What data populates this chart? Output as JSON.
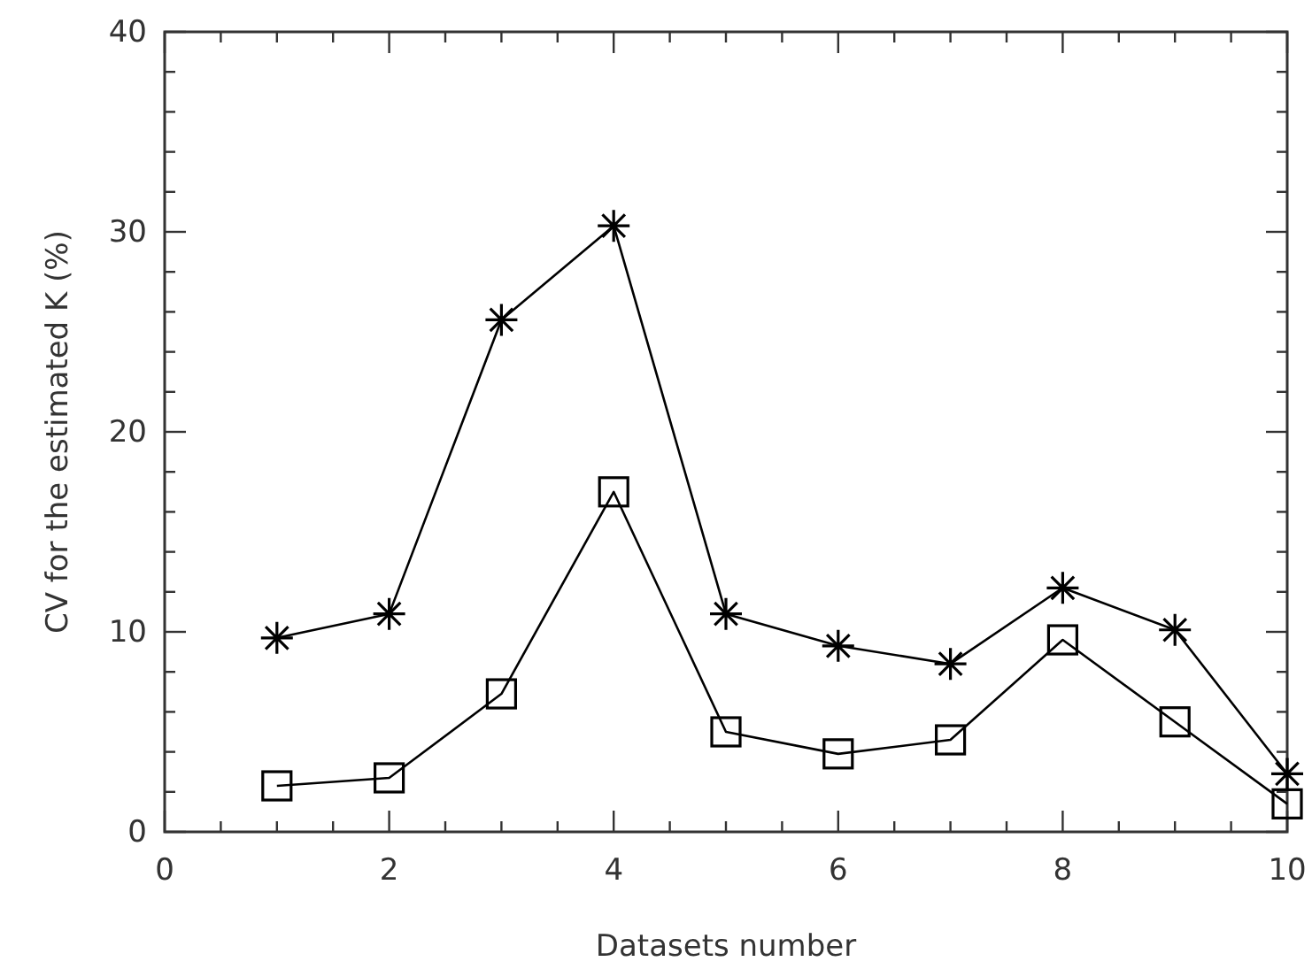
{
  "chart_data": {
    "type": "line",
    "xlabel": "Datasets number",
    "ylabel": "CV for the estimated K (%)",
    "x": [
      1,
      2,
      3,
      4,
      5,
      6,
      7,
      8,
      9,
      10
    ],
    "series": [
      {
        "color": "#000000",
        "marker": "cross",
        "values": [
          9.7,
          10.9,
          25.6,
          30.3,
          10.9,
          9.3,
          8.4,
          12.2,
          10.1,
          2.9
        ]
      },
      {
        "color": "#000000",
        "marker": "square",
        "values": [
          2.3,
          2.7,
          6.9,
          17.0,
          5.0,
          3.9,
          4.6,
          9.6,
          5.5,
          1.4
        ]
      }
    ],
    "xlim": [
      0,
      10
    ],
    "ylim": [
      0,
      40
    ],
    "xticks": [
      0,
      {
        "value": 0.5,
        "label": null
      },
      {
        "value": 1,
        "label": null
      },
      {
        "value": 1.5,
        "label": null
      },
      2,
      {
        "value": 2.5,
        "label": null
      },
      {
        "value": 3,
        "label": null
      },
      {
        "value": 3.5,
        "label": null
      },
      4,
      {
        "value": 4.5,
        "label": null
      },
      {
        "value": 5,
        "label": null
      },
      {
        "value": 5.5,
        "label": null
      },
      6,
      {
        "value": 6.5,
        "label": null
      },
      {
        "value": 7,
        "label": null
      },
      {
        "value": 7.5,
        "label": null
      },
      8,
      {
        "value": 8.5,
        "label": null
      },
      {
        "value": 9,
        "label": null
      },
      {
        "value": 9.5,
        "label": null
      },
      10
    ],
    "yticks": [
      0,
      {
        "value": 2,
        "label": null
      },
      {
        "value": 4,
        "label": null
      },
      {
        "value": 6,
        "label": null
      },
      {
        "value": 8,
        "label": null
      },
      10,
      {
        "value": 12,
        "label": null
      },
      {
        "value": 14,
        "label": null
      },
      {
        "value": 16,
        "label": null
      },
      {
        "value": 18,
        "label": null
      },
      20,
      {
        "value": 22,
        "label": null
      },
      {
        "value": 24,
        "label": null
      },
      {
        "value": 26,
        "label": null
      },
      {
        "value": 28,
        "label": null
      },
      30,
      {
        "value": 32,
        "label": null
      },
      {
        "value": 34,
        "label": null
      },
      {
        "value": 36,
        "label": null
      },
      {
        "value": 38,
        "label": null
      },
      40
    ],
    "grid": false,
    "line_style": "solid"
  }
}
